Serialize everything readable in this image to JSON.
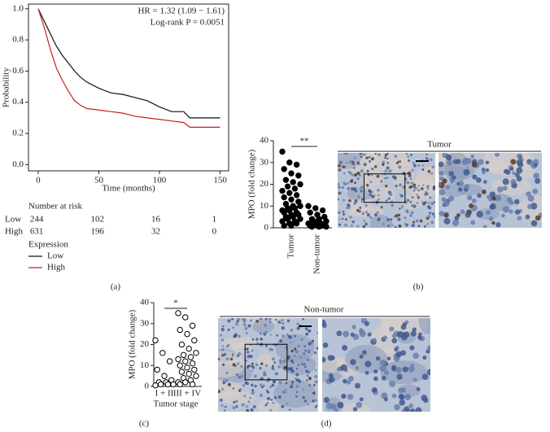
{
  "chart_data": [
    {
      "type": "line",
      "annotations": [
        "HR = 1.32 (1.09 − 1.61)",
        "Log-rank P = 0.0051"
      ],
      "x_label": "Time (months)",
      "y_label": "Probability",
      "x": [
        0,
        5,
        10,
        15,
        20,
        25,
        30,
        35,
        40,
        50,
        60,
        70,
        80,
        90,
        100,
        110,
        120,
        125,
        150
      ],
      "series": [
        {
          "name": "Low",
          "color": "#111111",
          "values": [
            1.0,
            0.92,
            0.84,
            0.76,
            0.7,
            0.65,
            0.6,
            0.56,
            0.53,
            0.49,
            0.46,
            0.45,
            0.43,
            0.41,
            0.37,
            0.34,
            0.34,
            0.3,
            0.3
          ]
        },
        {
          "name": "High",
          "color": "#cc1f1f",
          "values": [
            1.0,
            0.88,
            0.74,
            0.62,
            0.54,
            0.47,
            0.41,
            0.38,
            0.36,
            0.35,
            0.34,
            0.33,
            0.31,
            0.3,
            0.29,
            0.28,
            0.27,
            0.24,
            0.24
          ]
        }
      ],
      "xlim": [
        -8,
        157
      ],
      "xticks": [
        0,
        50,
        100,
        150
      ],
      "ylim": [
        -0.04,
        1.03
      ],
      "yticks": [
        {
          "value": 0,
          "label": "0.0"
        },
        0.2,
        0.4,
        0.6,
        0.8,
        {
          "value": 1,
          "label": "1.0"
        }
      ],
      "risk_table": {
        "title": "Number at risk",
        "rows": [
          {
            "name": "Low",
            "values": [
              244,
              102,
              16,
              1
            ]
          },
          {
            "name": "High",
            "values": [
              631,
              196,
              32,
              0
            ]
          }
        ]
      },
      "legend_title": "Expression"
    },
    {
      "type": "strip",
      "y_label": "MPO (fold change)",
      "significance": "**",
      "categories": [
        "Tumor",
        "Non-tumor"
      ],
      "filled": true,
      "series": [
        {
          "values": [
            35,
            30,
            29,
            27,
            25,
            24,
            22,
            21,
            20,
            19,
            18,
            17,
            16,
            15,
            14,
            13,
            12,
            11,
            10,
            10,
            9,
            9,
            8,
            8,
            7,
            7,
            6,
            6,
            5,
            5,
            4,
            4,
            3,
            3,
            2,
            2,
            1,
            1
          ]
        },
        {
          "values": [
            10,
            9,
            8,
            7,
            6,
            5,
            4,
            4,
            3,
            3,
            2,
            2,
            2,
            1,
            1,
            1,
            1,
            0.5,
            0.5,
            0.5
          ]
        }
      ],
      "ylim": [
        0,
        40
      ],
      "yticks": [
        0,
        10,
        20,
        30,
        40
      ]
    },
    {
      "type": "strip",
      "y_label": "MPO (fold change)",
      "x_label": "Tumor stage",
      "significance": "*",
      "categories": [
        "I + II",
        "III + IV"
      ],
      "filled": false,
      "series": [
        {
          "values": [
            22,
            16,
            12,
            8,
            5,
            3,
            2,
            2,
            1,
            1,
            1,
            0.5
          ]
        },
        {
          "values": [
            35,
            33,
            29,
            27,
            25,
            22,
            20,
            18,
            16,
            15,
            14,
            13,
            12,
            11,
            10,
            9,
            8,
            7,
            6,
            5,
            4,
            3,
            2,
            2,
            1,
            1
          ]
        }
      ],
      "ylim": [
        0,
        40
      ],
      "yticks": [
        0,
        10,
        20,
        30,
        40
      ]
    }
  ],
  "figure": {
    "panel_labels": [
      "(a)",
      "(b)",
      "(c)",
      "(d)"
    ],
    "image_titles": [
      "Tumor",
      "Non-tumor"
    ]
  }
}
